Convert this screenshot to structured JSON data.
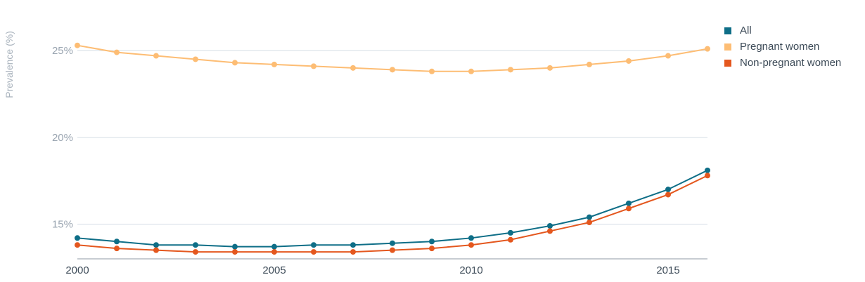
{
  "chart_data": {
    "type": "line",
    "ylabel": "Prevalence (%)",
    "xlim": [
      2000,
      2016
    ],
    "ylim": [
      13,
      26.5
    ],
    "x_ticks": [
      2000,
      2005,
      2010,
      2015
    ],
    "x_tick_labels": [
      "2000",
      "2005",
      "2010",
      "2015"
    ],
    "y_ticks": [
      15,
      20,
      25
    ],
    "y_tick_labels": [
      "15%",
      "20%",
      "25%"
    ],
    "grid": true,
    "legend_position": "top-right",
    "x": [
      2000,
      2001,
      2002,
      2003,
      2004,
      2005,
      2006,
      2007,
      2008,
      2009,
      2010,
      2011,
      2012,
      2013,
      2014,
      2015,
      2016
    ],
    "series": [
      {
        "name": "All",
        "color": "#0e6e87",
        "values": [
          14.2,
          14.0,
          13.8,
          13.8,
          13.7,
          13.7,
          13.8,
          13.8,
          13.9,
          14.0,
          14.2,
          14.5,
          14.9,
          15.4,
          16.2,
          17.0,
          18.1
        ]
      },
      {
        "name": "Pregnant women",
        "color": "#fdbd74",
        "values": [
          25.3,
          24.9,
          24.7,
          24.5,
          24.3,
          24.2,
          24.1,
          24.0,
          23.9,
          23.8,
          23.8,
          23.9,
          24.0,
          24.2,
          24.4,
          24.7,
          25.1
        ]
      },
      {
        "name": "Non-pregnant women",
        "color": "#e4571e",
        "values": [
          13.8,
          13.6,
          13.5,
          13.4,
          13.4,
          13.4,
          13.4,
          13.4,
          13.5,
          13.6,
          13.8,
          14.1,
          14.6,
          15.1,
          15.9,
          16.7,
          17.8
        ]
      }
    ]
  }
}
